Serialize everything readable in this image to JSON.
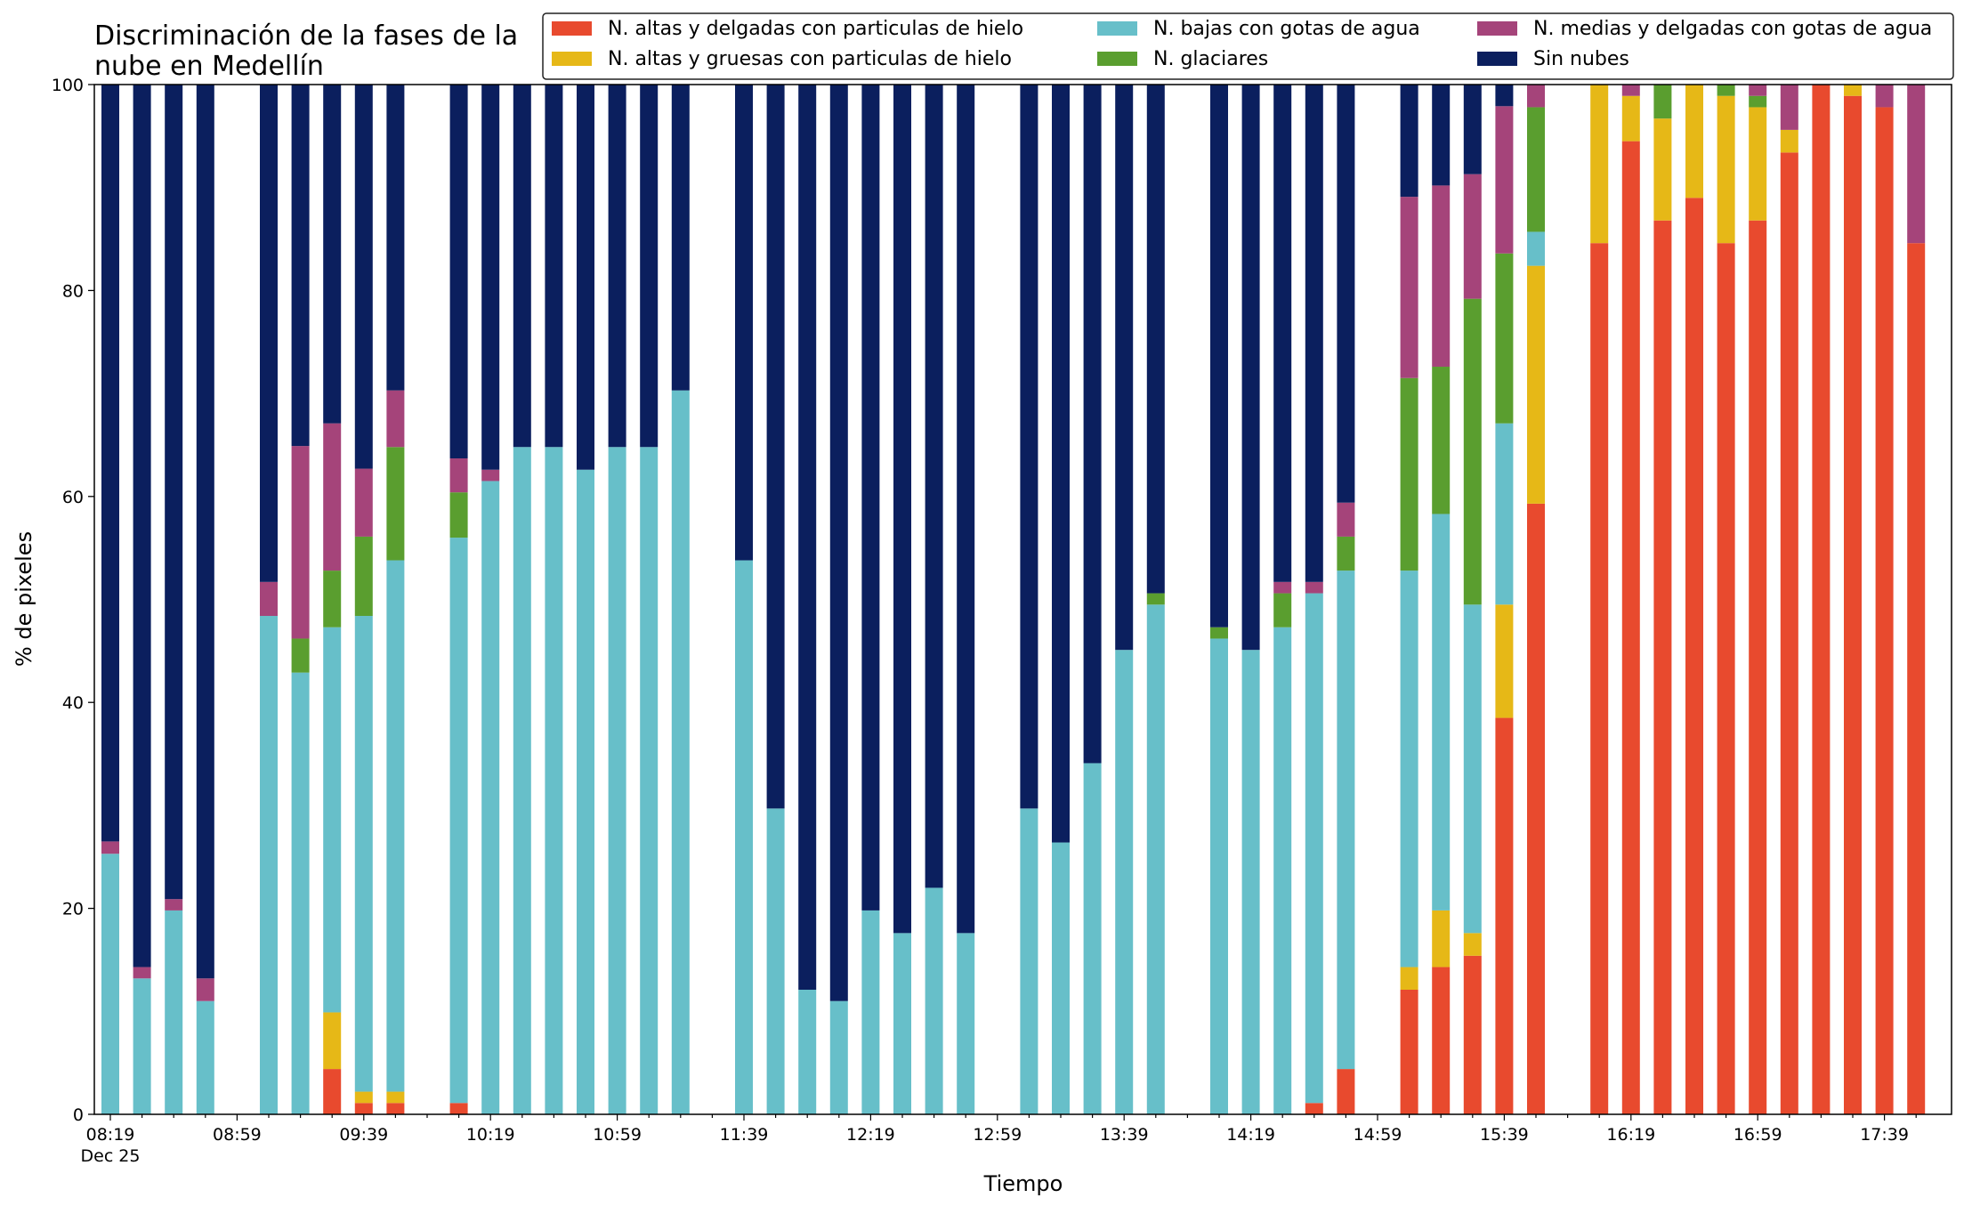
{
  "chart_data": {
    "type": "bar",
    "stacked": true,
    "title": "Discriminación de la fases de la nube en Medellín",
    "title_lines": [
      "Discriminación de la fases de la",
      "nube en Medellín"
    ],
    "xlabel": "Tiempo",
    "ylabel": "% de pixeles",
    "ylim": [
      0,
      100
    ],
    "yticks": [
      0,
      20,
      40,
      60,
      80,
      100
    ],
    "grid": false,
    "legend_position": "top-right",
    "x_start": "08:19",
    "x_interval_minutes": 10,
    "x_count": 58,
    "x_tick_labels": [
      {
        "index": 0,
        "label": "08:19",
        "sublabel": "Dec 25"
      },
      {
        "index": 4,
        "label": "08:59"
      },
      {
        "index": 8,
        "label": "09:39"
      },
      {
        "index": 12,
        "label": "10:19"
      },
      {
        "index": 16,
        "label": "10:59"
      },
      {
        "index": 20,
        "label": "11:39"
      },
      {
        "index": 24,
        "label": "12:19"
      },
      {
        "index": 28,
        "label": "12:59"
      },
      {
        "index": 32,
        "label": "13:39"
      },
      {
        "index": 36,
        "label": "14:19"
      },
      {
        "index": 40,
        "label": "14:59"
      },
      {
        "index": 44,
        "label": "15:39"
      },
      {
        "index": 48,
        "label": "16:19"
      },
      {
        "index": 52,
        "label": "16:59"
      },
      {
        "index": 56,
        "label": "17:39"
      }
    ],
    "stack_order": [
      "altas_delgadas",
      "altas_gruesas",
      "bajas_agua",
      "glaciares",
      "medias_delgadas",
      "sin_nubes"
    ],
    "series": [
      {
        "key": "altas_delgadas",
        "name": "N. altas y delgadas con particulas de hielo",
        "color": "#e84a2e"
      },
      {
        "key": "altas_gruesas",
        "name": "N. altas y gruesas con particulas de hielo",
        "color": "#e6b817"
      },
      {
        "key": "bajas_agua",
        "name": "N. bajas con gotas de agua",
        "color": "#67bfc9"
      },
      {
        "key": "glaciares",
        "name": "N. glaciares",
        "color": "#5a9e2f"
      },
      {
        "key": "medias_delgadas",
        "name": "N. medias y delgadas con gotas de agua",
        "color": "#a5447a"
      },
      {
        "key": "sin_nubes",
        "name": "Sin nubes",
        "color": "#0b1f5e"
      }
    ],
    "bars": [
      {
        "index": 0,
        "time": "08:19",
        "values": [
          0,
          0,
          25.3,
          0,
          1.2,
          73.5
        ]
      },
      {
        "index": 1,
        "time": "08:29",
        "values": [
          0,
          0,
          13.2,
          0,
          1.1,
          85.7
        ]
      },
      {
        "index": 2,
        "time": "08:39",
        "values": [
          0,
          0,
          19.8,
          0,
          1.1,
          79.1
        ]
      },
      {
        "index": 3,
        "time": "08:49",
        "values": [
          0,
          0,
          11.0,
          0,
          2.2,
          86.8
        ]
      },
      {
        "index": 5,
        "time": "09:09",
        "values": [
          0,
          0,
          48.4,
          0,
          3.3,
          48.3
        ]
      },
      {
        "index": 6,
        "time": "09:19",
        "values": [
          0,
          0,
          42.9,
          3.3,
          18.7,
          35.1
        ]
      },
      {
        "index": 7,
        "time": "09:29",
        "values": [
          4.4,
          5.5,
          37.4,
          5.5,
          14.3,
          32.9
        ]
      },
      {
        "index": 8,
        "time": "09:39",
        "values": [
          1.1,
          1.1,
          46.2,
          7.7,
          6.6,
          37.3
        ]
      },
      {
        "index": 9,
        "time": "09:49",
        "values": [
          1.1,
          1.1,
          51.6,
          11.0,
          5.5,
          29.7
        ]
      },
      {
        "index": 11,
        "time": "10:09",
        "values": [
          1.1,
          0,
          54.9,
          4.4,
          3.3,
          36.3
        ]
      },
      {
        "index": 12,
        "time": "10:19",
        "values": [
          0,
          0,
          61.5,
          0,
          1.1,
          37.4
        ]
      },
      {
        "index": 13,
        "time": "10:29",
        "values": [
          0,
          0,
          64.8,
          0,
          0,
          35.2
        ]
      },
      {
        "index": 14,
        "time": "10:39",
        "values": [
          0,
          0,
          64.8,
          0,
          0,
          35.2
        ]
      },
      {
        "index": 15,
        "time": "10:49",
        "values": [
          0,
          0,
          62.6,
          0,
          0,
          37.4
        ]
      },
      {
        "index": 16,
        "time": "10:59",
        "values": [
          0,
          0,
          64.8,
          0,
          0,
          35.2
        ]
      },
      {
        "index": 17,
        "time": "11:09",
        "values": [
          0,
          0,
          64.8,
          0,
          0,
          35.2
        ]
      },
      {
        "index": 18,
        "time": "11:19",
        "values": [
          0,
          0,
          70.3,
          0,
          0,
          29.7
        ]
      },
      {
        "index": 20,
        "time": "11:39",
        "values": [
          0,
          0,
          53.8,
          0,
          0,
          46.2
        ]
      },
      {
        "index": 21,
        "time": "11:49",
        "values": [
          0,
          0,
          29.7,
          0,
          0,
          70.3
        ]
      },
      {
        "index": 22,
        "time": "11:59",
        "values": [
          0,
          0,
          12.1,
          0,
          0,
          87.9
        ]
      },
      {
        "index": 23,
        "time": "12:09",
        "values": [
          0,
          0,
          11.0,
          0,
          0,
          89.0
        ]
      },
      {
        "index": 24,
        "time": "12:19",
        "values": [
          0,
          0,
          19.8,
          0,
          0,
          80.2
        ]
      },
      {
        "index": 25,
        "time": "12:29",
        "values": [
          0,
          0,
          17.6,
          0,
          0,
          82.4
        ]
      },
      {
        "index": 26,
        "time": "12:39",
        "values": [
          0,
          0,
          22.0,
          0,
          0,
          78.0
        ]
      },
      {
        "index": 27,
        "time": "12:49",
        "values": [
          0,
          0,
          17.6,
          0,
          0,
          82.4
        ]
      },
      {
        "index": 29,
        "time": "13:09",
        "values": [
          0,
          0,
          29.7,
          0,
          0,
          70.3
        ]
      },
      {
        "index": 30,
        "time": "13:19",
        "values": [
          0,
          0,
          26.4,
          0,
          0,
          73.6
        ]
      },
      {
        "index": 31,
        "time": "13:29",
        "values": [
          0,
          0,
          34.1,
          0,
          0,
          65.9
        ]
      },
      {
        "index": 32,
        "time": "13:39",
        "values": [
          0,
          0,
          45.1,
          0,
          0,
          54.9
        ]
      },
      {
        "index": 33,
        "time": "13:49",
        "values": [
          0,
          0,
          49.5,
          1.1,
          0,
          49.4
        ]
      },
      {
        "index": 35,
        "time": "14:09",
        "values": [
          0,
          0,
          46.2,
          1.1,
          0,
          52.7
        ]
      },
      {
        "index": 36,
        "time": "14:19",
        "values": [
          0,
          0,
          45.1,
          0,
          0,
          54.9
        ]
      },
      {
        "index": 37,
        "time": "14:29",
        "values": [
          0,
          0,
          47.3,
          3.3,
          1.1,
          48.3
        ]
      },
      {
        "index": 38,
        "time": "14:39",
        "values": [
          1.1,
          0,
          49.5,
          0,
          1.1,
          48.3
        ]
      },
      {
        "index": 39,
        "time": "14:49",
        "values": [
          4.4,
          0,
          48.4,
          3.3,
          3.3,
          40.6
        ]
      },
      {
        "index": 41,
        "time": "15:09",
        "values": [
          12.1,
          2.2,
          38.5,
          18.7,
          17.6,
          10.9
        ]
      },
      {
        "index": 42,
        "time": "15:19",
        "values": [
          14.3,
          5.5,
          38.5,
          14.3,
          17.6,
          9.8
        ]
      },
      {
        "index": 43,
        "time": "15:29",
        "values": [
          15.4,
          2.2,
          31.9,
          29.7,
          12.1,
          8.7
        ]
      },
      {
        "index": 44,
        "time": "15:39",
        "values": [
          38.5,
          11.0,
          17.6,
          16.5,
          14.3,
          2.1
        ]
      },
      {
        "index": 45,
        "time": "15:49",
        "values": [
          59.3,
          23.1,
          3.3,
          12.1,
          2.2,
          0
        ]
      },
      {
        "index": 47,
        "time": "16:09",
        "values": [
          84.6,
          15.4,
          0,
          0,
          0,
          0
        ]
      },
      {
        "index": 48,
        "time": "16:19",
        "values": [
          94.5,
          4.4,
          0,
          0,
          1.1,
          0
        ]
      },
      {
        "index": 49,
        "time": "16:29",
        "values": [
          86.8,
          9.9,
          0,
          3.3,
          0,
          0
        ]
      },
      {
        "index": 50,
        "time": "16:39",
        "values": [
          89.0,
          11.0,
          0,
          0,
          0,
          0
        ]
      },
      {
        "index": 51,
        "time": "16:49",
        "values": [
          84.6,
          14.3,
          0,
          1.1,
          0,
          0
        ]
      },
      {
        "index": 52,
        "time": "16:59",
        "values": [
          86.8,
          11.0,
          0,
          1.1,
          1.1,
          0
        ]
      },
      {
        "index": 53,
        "time": "17:09",
        "values": [
          93.4,
          2.2,
          0,
          0,
          4.4,
          0
        ]
      },
      {
        "index": 54,
        "time": "17:19",
        "values": [
          100,
          0,
          0,
          0,
          0,
          0
        ]
      },
      {
        "index": 55,
        "time": "17:29",
        "values": [
          98.9,
          1.1,
          0,
          0,
          0,
          0
        ]
      },
      {
        "index": 56,
        "time": "17:39",
        "values": [
          97.8,
          0,
          0,
          0,
          2.2,
          0
        ]
      },
      {
        "index": 57,
        "time": "17:49",
        "values": [
          84.6,
          0,
          0,
          0,
          15.4,
          0
        ]
      }
    ]
  }
}
